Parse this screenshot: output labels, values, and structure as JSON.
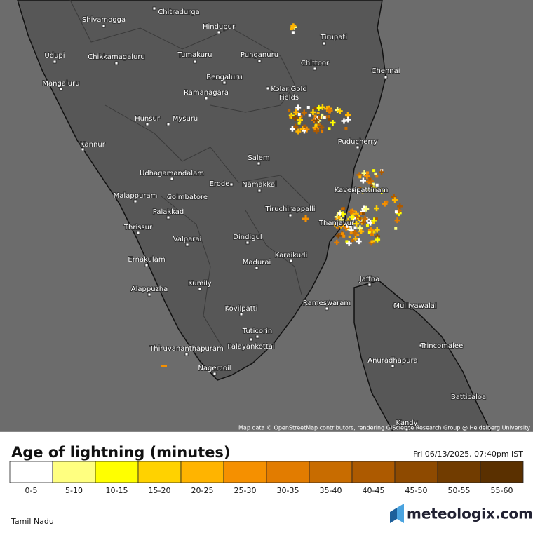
{
  "map": {
    "labels": [
      "Shivamogga",
      "Chitradurga",
      "Hindupur",
      "Tirupati",
      "Udupi",
      "Chikkamagaluru",
      "Tumakuru",
      "Punganuru",
      "Chittoor",
      "Chennai",
      "Mangaluru",
      "Bengaluru",
      "Kolar Gold Fields",
      "Ramanagara",
      "Hunsur",
      "Mysuru",
      "Puducherry",
      "Kannur",
      "Salem",
      "Udhagamandalam",
      "Erode",
      "Namakkal",
      "Kaveripattinam",
      "Coimbatore",
      "Malappuram",
      "Tiruchirappalli",
      "Palakkad",
      "Thrissur",
      "Thanjavur",
      "Valparai",
      "Dindigul",
      "Karaikudi",
      "Madurai",
      "Ernakulam",
      "Jaffna",
      "Kumily",
      "Alappuzha",
      "Rameswaram",
      "Mulliyawalai",
      "Kovilpatti",
      "Tuticorin",
      "Trincomalee",
      "Thiruvananthapuram",
      "Palayankottai",
      "Anuradhapura",
      "Nagercoil",
      "Batticaloa",
      "Kandy"
    ],
    "attribution": "Map data © OpenStreetMap contributors, rendering GIScience Research Group @ Heidelberg University"
  },
  "legend": {
    "title": "Age of lightning (minutes)",
    "timestamp": "Fri 06/13/2025, 07:40pm IST",
    "bins": [
      {
        "label": "0-5",
        "color": "#ffffff"
      },
      {
        "label": "5-10",
        "color": "#ffff80"
      },
      {
        "label": "10-15",
        "color": "#ffff00"
      },
      {
        "label": "15-20",
        "color": "#ffd200"
      },
      {
        "label": "20-25",
        "color": "#ffb400"
      },
      {
        "label": "25-30",
        "color": "#f59000"
      },
      {
        "label": "30-35",
        "color": "#e27c00"
      },
      {
        "label": "35-40",
        "color": "#c86c00"
      },
      {
        "label": "40-45",
        "color": "#ad5a00"
      },
      {
        "label": "45-50",
        "color": "#8e4a00"
      },
      {
        "label": "50-55",
        "color": "#713c00"
      },
      {
        "label": "55-60",
        "color": "#5a3000"
      }
    ]
  },
  "footer": {
    "region": "Tamil Nadu",
    "brand": "meteologix.com"
  }
}
